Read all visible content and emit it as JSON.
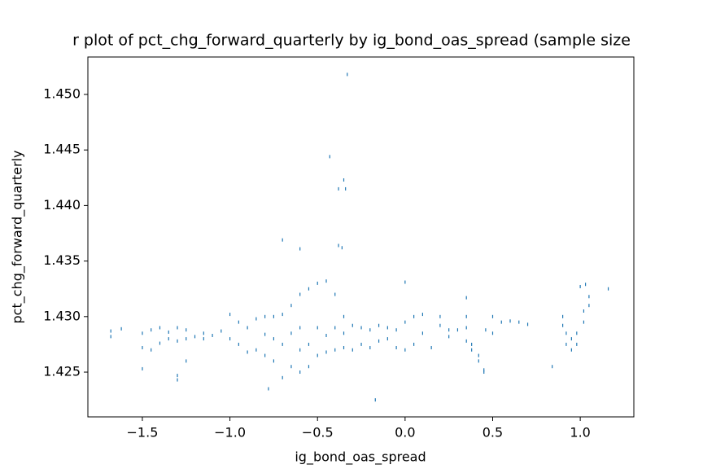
{
  "chart_data": {
    "type": "scatter",
    "title": "r plot of pct_chg_forward_quarterly by ig_bond_oas_spread (sample size",
    "x_label": "ig_bond_oas_spread",
    "y_label": "pct_chg_forward_quarterly",
    "color": "#1f77b4",
    "xlim": [
      -1.811,
      1.306
    ],
    "ylim": [
      1.42097,
      1.45337
    ],
    "xticks": [
      {
        "value": -1.5,
        "label": "−1.5"
      },
      {
        "value": -1.0,
        "label": "−1.0"
      },
      {
        "value": -0.5,
        "label": "−0.5"
      },
      {
        "value": 0.0,
        "label": "0.0"
      },
      0.5,
      {
        "value": 1.0,
        "label": "1.0"
      }
    ],
    "yticks": [
      1.425,
      {
        "value": 1.43,
        "label": "1.430"
      },
      1.435,
      {
        "value": 1.44,
        "label": "1.440"
      },
      1.445,
      {
        "value": 1.45,
        "label": "1.450"
      }
    ],
    "x": [
      -0.33,
      -0.43,
      -0.35,
      -0.38,
      -0.34,
      -0.7,
      -0.6,
      -0.38,
      -0.36,
      0.0,
      -0.17,
      -0.78,
      -1.3,
      -1.3,
      -1.5,
      -1.25,
      0.84,
      1.16,
      1.0,
      1.03,
      0.35,
      -1.68,
      -1.68,
      -1.62,
      -1.5,
      -1.5,
      -1.45,
      -1.45,
      -1.4,
      -1.4,
      -1.35,
      -1.35,
      -1.3,
      -1.3,
      -1.25,
      -1.25,
      -1.2,
      -1.15,
      -1.15,
      -1.1,
      -1.05,
      -1.0,
      -1.0,
      -0.95,
      -0.95,
      -0.9,
      -0.9,
      -0.85,
      -0.85,
      -0.8,
      -0.8,
      -0.8,
      -0.75,
      -0.75,
      -0.75,
      -0.7,
      -0.7,
      -0.7,
      -0.65,
      -0.65,
      -0.65,
      -0.6,
      -0.6,
      -0.6,
      -0.6,
      -0.55,
      -0.55,
      -0.55,
      -0.5,
      -0.5,
      -0.5,
      -0.45,
      -0.45,
      -0.45,
      -0.4,
      -0.4,
      -0.4,
      -0.35,
      -0.35,
      -0.35,
      -0.3,
      -0.3,
      -0.25,
      -0.25,
      -0.2,
      -0.2,
      -0.15,
      -0.15,
      -0.1,
      -0.1,
      -0.05,
      -0.05,
      0.0,
      0.0,
      0.05,
      0.05,
      0.1,
      0.1,
      0.15,
      0.2,
      0.2,
      0.25,
      0.25,
      0.3,
      0.35,
      0.35,
      0.35,
      0.38,
      0.38,
      0.42,
      0.42,
      0.45,
      0.45,
      0.46,
      0.5,
      0.5,
      0.55,
      0.6,
      0.65,
      0.7,
      0.9,
      0.9,
      0.92,
      0.92,
      0.95,
      0.95,
      0.98,
      0.98,
      1.02,
      1.02,
      1.05,
      1.05
    ],
    "y": [
      1.4518,
      1.4444,
      1.4423,
      1.4415,
      1.4415,
      1.4369,
      1.4361,
      1.4364,
      1.4362,
      1.4331,
      1.4225,
      1.4235,
      1.4243,
      1.4247,
      1.4253,
      1.426,
      1.4255,
      1.4325,
      1.4327,
      1.4329,
      1.4317,
      1.4282,
      1.4287,
      1.4289,
      1.4272,
      1.4285,
      1.427,
      1.4288,
      1.4276,
      1.429,
      1.428,
      1.4286,
      1.4278,
      1.429,
      1.428,
      1.4288,
      1.4282,
      1.4285,
      1.428,
      1.4283,
      1.4287,
      1.4302,
      1.428,
      1.4275,
      1.4295,
      1.4268,
      1.429,
      1.427,
      1.4298,
      1.4265,
      1.43,
      1.4284,
      1.426,
      1.43,
      1.428,
      1.4245,
      1.4302,
      1.4275,
      1.4255,
      1.431,
      1.4285,
      1.425,
      1.432,
      1.427,
      1.429,
      1.4255,
      1.4325,
      1.4275,
      1.4265,
      1.433,
      1.429,
      1.4268,
      1.4332,
      1.4283,
      1.427,
      1.432,
      1.429,
      1.4272,
      1.43,
      1.4285,
      1.427,
      1.4292,
      1.4275,
      1.429,
      1.4272,
      1.4288,
      1.4278,
      1.4292,
      1.428,
      1.429,
      1.4272,
      1.4288,
      1.427,
      1.4295,
      1.4275,
      1.43,
      1.4285,
      1.4302,
      1.4272,
      1.4292,
      1.43,
      1.4282,
      1.4288,
      1.4288,
      1.4278,
      1.429,
      1.43,
      1.4275,
      1.427,
      1.4265,
      1.426,
      1.4252,
      1.425,
      1.4288,
      1.4285,
      1.43,
      1.4295,
      1.4296,
      1.4295,
      1.4293,
      1.43,
      1.4292,
      1.4275,
      1.4285,
      1.427,
      1.428,
      1.4275,
      1.4285,
      1.4295,
      1.4305,
      1.431,
      1.4318
    ]
  }
}
